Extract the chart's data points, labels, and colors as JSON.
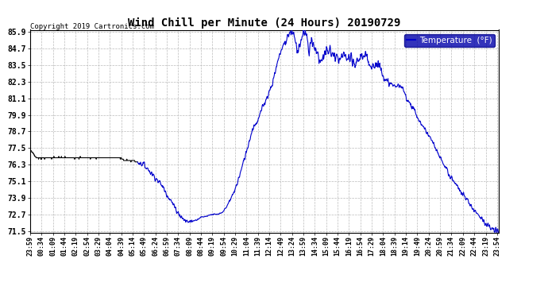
{
  "title": "Wind Chill per Minute (24 Hours) 20190729",
  "copyright": "Copyright 2019 Cartronics.com",
  "legend_label": "Temperature  (°F)",
  "line_color": "#0000CC",
  "early_line_color": "#000000",
  "legend_bg": "#0000AA",
  "legend_text_color": "#FFFFFF",
  "bg_color": "#FFFFFF",
  "grid_color": "#BBBBBB",
  "ylim": [
    71.5,
    85.9
  ],
  "yticks": [
    71.5,
    72.7,
    73.9,
    75.1,
    76.3,
    77.5,
    78.7,
    79.9,
    81.1,
    82.3,
    83.5,
    84.7,
    85.9
  ],
  "xtick_labels": [
    "23:59",
    "00:34",
    "01:09",
    "01:44",
    "02:19",
    "02:54",
    "03:29",
    "04:04",
    "04:39",
    "05:14",
    "05:49",
    "06:24",
    "06:59",
    "07:34",
    "08:09",
    "08:44",
    "09:19",
    "09:54",
    "10:29",
    "11:04",
    "11:39",
    "12:14",
    "12:49",
    "13:24",
    "13:59",
    "14:34",
    "15:09",
    "15:44",
    "16:19",
    "16:54",
    "17:29",
    "18:04",
    "18:39",
    "19:14",
    "19:49",
    "20:24",
    "20:59",
    "21:34",
    "22:09",
    "22:44",
    "23:19",
    "23:54"
  ]
}
